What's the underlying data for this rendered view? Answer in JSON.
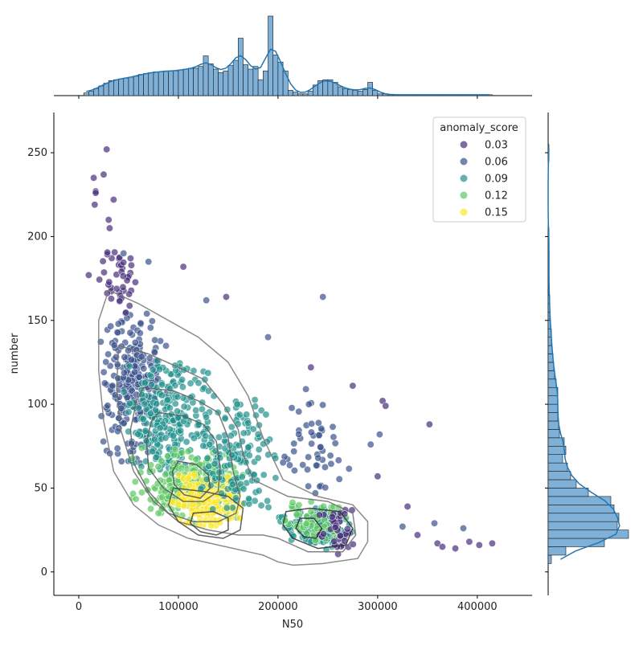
{
  "chart_data": {
    "type": "scatter",
    "subtype": "jointplot",
    "xlabel": "N50",
    "ylabel": "number",
    "xlim": [
      -25000,
      455000
    ],
    "ylim": [
      -14,
      274
    ],
    "xticks": [
      0,
      100000,
      200000,
      300000,
      400000
    ],
    "yticks": [
      0,
      50,
      100,
      150,
      200,
      250
    ],
    "grid": false,
    "legend": {
      "title": "anomaly_score",
      "placement": "top-right",
      "entries": [
        {
          "label": "0.03",
          "color": "#472d7b"
        },
        {
          "label": "0.06",
          "color": "#3b528b"
        },
        {
          "label": "0.09",
          "color": "#21918c"
        },
        {
          "label": "0.12",
          "color": "#5ec962"
        },
        {
          "label": "0.15",
          "color": "#fde725"
        }
      ]
    },
    "colormap": "viridis",
    "point_alpha": 0.7,
    "marginal_color": "#1f77b4",
    "marginal_fill": "#7fb0d8",
    "point_clusters": [
      {
        "x": [
          20000,
          90000
        ],
        "y": [
          60,
          160
        ],
        "score": "0.06",
        "n": 260
      },
      {
        "x": [
          40000,
          140000
        ],
        "y": [
          55,
          130
        ],
        "score": "0.09",
        "n": 260
      },
      {
        "x": [
          50000,
          170000
        ],
        "y": [
          25,
          75
        ],
        "score": "0.12",
        "n": 240
      },
      {
        "x": [
          90000,
          170000
        ],
        "y": [
          25,
          60
        ],
        "score": "0.15",
        "n": 170
      },
      {
        "x": [
          120000,
          200000
        ],
        "y": [
          30,
          110
        ],
        "score": "0.09",
        "n": 150
      },
      {
        "x": [
          20000,
          60000
        ],
        "y": [
          150,
          205
        ],
        "score": "0.03",
        "n": 40
      },
      {
        "x": [
          200000,
          280000
        ],
        "y": [
          12,
          40
        ],
        "score": "0.09",
        "n": 130
      },
      {
        "x": [
          200000,
          280000
        ],
        "y": [
          15,
          45
        ],
        "score": "0.12",
        "n": 60
      },
      {
        "x": [
          240000,
          280000
        ],
        "y": [
          10,
          40
        ],
        "score": "0.03",
        "n": 40
      },
      {
        "x": [
          200000,
          280000
        ],
        "y": [
          40,
          110
        ],
        "score": "0.06",
        "n": 50
      }
    ],
    "outliers": [
      {
        "x": 28000,
        "y": 252,
        "score": "0.03"
      },
      {
        "x": 25000,
        "y": 237,
        "score": "0.03"
      },
      {
        "x": 15000,
        "y": 235,
        "score": "0.03"
      },
      {
        "x": 17000,
        "y": 227,
        "score": "0.03"
      },
      {
        "x": 17000,
        "y": 226,
        "score": "0.03"
      },
      {
        "x": 35000,
        "y": 222,
        "score": "0.03"
      },
      {
        "x": 16000,
        "y": 219,
        "score": "0.03"
      },
      {
        "x": 30000,
        "y": 210,
        "score": "0.03"
      },
      {
        "x": 31000,
        "y": 205,
        "score": "0.03"
      },
      {
        "x": 10000,
        "y": 177,
        "score": "0.03"
      },
      {
        "x": 105000,
        "y": 182,
        "score": "0.03"
      },
      {
        "x": 245000,
        "y": 164,
        "score": "0.06"
      },
      {
        "x": 352000,
        "y": 88,
        "score": "0.03"
      },
      {
        "x": 305000,
        "y": 102,
        "score": "0.03"
      },
      {
        "x": 308000,
        "y": 99,
        "score": "0.03"
      },
      {
        "x": 330000,
        "y": 39,
        "score": "0.03"
      },
      {
        "x": 357000,
        "y": 29,
        "score": "0.06"
      },
      {
        "x": 386000,
        "y": 26,
        "score": "0.06"
      },
      {
        "x": 325000,
        "y": 27,
        "score": "0.06"
      },
      {
        "x": 340000,
        "y": 22,
        "score": "0.03"
      },
      {
        "x": 360000,
        "y": 17,
        "score": "0.03"
      },
      {
        "x": 365000,
        "y": 15,
        "score": "0.03"
      },
      {
        "x": 378000,
        "y": 14,
        "score": "0.03"
      },
      {
        "x": 392000,
        "y": 18,
        "score": "0.03"
      },
      {
        "x": 402000,
        "y": 16,
        "score": "0.03"
      },
      {
        "x": 415000,
        "y": 17,
        "score": "0.03"
      },
      {
        "x": 300000,
        "y": 57,
        "score": "0.03"
      },
      {
        "x": 293000,
        "y": 76,
        "score": "0.06"
      },
      {
        "x": 302000,
        "y": 82,
        "score": "0.06"
      },
      {
        "x": 233000,
        "y": 122,
        "score": "0.03"
      },
      {
        "x": 228000,
        "y": 109,
        "score": "0.06"
      },
      {
        "x": 275000,
        "y": 111,
        "score": "0.03"
      },
      {
        "x": 190000,
        "y": 140,
        "score": "0.06"
      },
      {
        "x": 148000,
        "y": 164,
        "score": "0.03"
      },
      {
        "x": 128000,
        "y": 162,
        "score": "0.06"
      },
      {
        "x": 70000,
        "y": 185,
        "score": "0.06"
      },
      {
        "x": 45000,
        "y": 190,
        "score": "0.06"
      },
      {
        "x": 52000,
        "y": 187,
        "score": "0.03"
      }
    ],
    "kde_contours": [
      [
        [
          30000,
          168
        ],
        [
          60000,
          160
        ],
        [
          90000,
          150
        ],
        [
          120000,
          140
        ],
        [
          150000,
          125
        ],
        [
          170000,
          105
        ],
        [
          185000,
          80
        ],
        [
          205000,
          55
        ],
        [
          240000,
          45
        ],
        [
          275000,
          40
        ],
        [
          290000,
          30
        ],
        [
          290000,
          18
        ],
        [
          280000,
          8
        ],
        [
          245000,
          5
        ],
        [
          215000,
          4
        ],
        [
          200000,
          6
        ],
        [
          185000,
          10
        ],
        [
          170000,
          12
        ],
        [
          140000,
          16
        ],
        [
          110000,
          20
        ],
        [
          80000,
          28
        ],
        [
          55000,
          40
        ],
        [
          35000,
          60
        ],
        [
          25000,
          90
        ],
        [
          20000,
          120
        ],
        [
          20000,
          150
        ],
        [
          30000,
          168
        ]
      ],
      [
        [
          40000,
          135
        ],
        [
          70000,
          130
        ],
        [
          100000,
          122
        ],
        [
          125000,
          115
        ],
        [
          145000,
          100
        ],
        [
          160000,
          85
        ],
        [
          165000,
          70
        ],
        [
          175000,
          55
        ],
        [
          210000,
          45
        ],
        [
          250000,
          42
        ],
        [
          275000,
          35
        ],
        [
          278000,
          22
        ],
        [
          265000,
          12
        ],
        [
          230000,
          12
        ],
        [
          200000,
          20
        ],
        [
          185000,
          22
        ],
        [
          160000,
          22
        ],
        [
          130000,
          25
        ],
        [
          100000,
          30
        ],
        [
          75000,
          42
        ],
        [
          55000,
          60
        ],
        [
          42000,
          85
        ],
        [
          38000,
          110
        ],
        [
          40000,
          135
        ]
      ],
      [
        [
          65000,
          110
        ],
        [
          95000,
          108
        ],
        [
          120000,
          102
        ],
        [
          140000,
          95
        ],
        [
          150000,
          80
        ],
        [
          155000,
          60
        ],
        [
          162000,
          45
        ],
        [
          158000,
          35
        ],
        [
          140000,
          30
        ],
        [
          115000,
          30
        ],
        [
          90000,
          35
        ],
        [
          70000,
          48
        ],
        [
          55000,
          65
        ],
        [
          52000,
          85
        ],
        [
          58000,
          102
        ],
        [
          65000,
          110
        ]
      ],
      [
        [
          80000,
          95
        ],
        [
          105000,
          93
        ],
        [
          125000,
          88
        ],
        [
          138000,
          78
        ],
        [
          142000,
          62
        ],
        [
          140000,
          48
        ],
        [
          125000,
          42
        ],
        [
          105000,
          42
        ],
        [
          85000,
          50
        ],
        [
          70000,
          62
        ],
        [
          68000,
          78
        ],
        [
          73000,
          90
        ],
        [
          80000,
          95
        ]
      ],
      [
        [
          100000,
          66
        ],
        [
          118000,
          64
        ],
        [
          130000,
          58
        ],
        [
          132000,
          50
        ],
        [
          122000,
          44
        ],
        [
          106000,
          46
        ],
        [
          96000,
          52
        ],
        [
          94000,
          60
        ],
        [
          100000,
          66
        ]
      ],
      [
        [
          95000,
          50
        ],
        [
          125000,
          48
        ],
        [
          150000,
          45
        ],
        [
          165000,
          38
        ],
        [
          162000,
          25
        ],
        [
          145000,
          20
        ],
        [
          120000,
          22
        ],
        [
          100000,
          30
        ],
        [
          90000,
          40
        ],
        [
          95000,
          50
        ]
      ],
      [
        [
          115000,
          35
        ],
        [
          135000,
          36
        ],
        [
          150000,
          32
        ],
        [
          150000,
          25
        ],
        [
          138000,
          22
        ],
        [
          122000,
          24
        ],
        [
          112000,
          29
        ],
        [
          115000,
          35
        ]
      ],
      [
        [
          208000,
          36
        ],
        [
          232000,
          38
        ],
        [
          262000,
          36
        ],
        [
          275000,
          26
        ],
        [
          268000,
          16
        ],
        [
          240000,
          14
        ],
        [
          215000,
          20
        ],
        [
          205000,
          28
        ],
        [
          208000,
          36
        ]
      ],
      [
        [
          222000,
          32
        ],
        [
          236000,
          32
        ],
        [
          244000,
          26
        ],
        [
          238000,
          20
        ],
        [
          226000,
          21
        ],
        [
          218000,
          26
        ],
        [
          222000,
          32
        ]
      ]
    ],
    "x_marginal_bins": {
      "start": 5000,
      "width": 5000,
      "counts": [
        3,
        5,
        8,
        11,
        14,
        17,
        18,
        19,
        20,
        21,
        22,
        24,
        25,
        26,
        27,
        27,
        28,
        28,
        28,
        29,
        30,
        31,
        31,
        33,
        45,
        36,
        30,
        26,
        28,
        34,
        40,
        65,
        35,
        30,
        33,
        18,
        28,
        90,
        46,
        38,
        28,
        6,
        4,
        2,
        2,
        5,
        12,
        17,
        18,
        18,
        15,
        10,
        8,
        7,
        6,
        5,
        7,
        15,
        6,
        2,
        2,
        1,
        1,
        1,
        1,
        1,
        1,
        1,
        1,
        1,
        1,
        1,
        1,
        1,
        1,
        1,
        1,
        1,
        1,
        1,
        1,
        1
      ]
    },
    "y_marginal_bins": {
      "start": 5,
      "width": 5,
      "counts": [
        4,
        22,
        70,
        100,
        86,
        88,
        82,
        78,
        50,
        35,
        28,
        24,
        18,
        22,
        20,
        14,
        13,
        12,
        12,
        12,
        12,
        10,
        8,
        7,
        6,
        5,
        4,
        4,
        3,
        2,
        2,
        2,
        1,
        1,
        1,
        1,
        1,
        1,
        1,
        1,
        0,
        0,
        0,
        0,
        0,
        0,
        0,
        0,
        1,
        1
      ]
    }
  }
}
